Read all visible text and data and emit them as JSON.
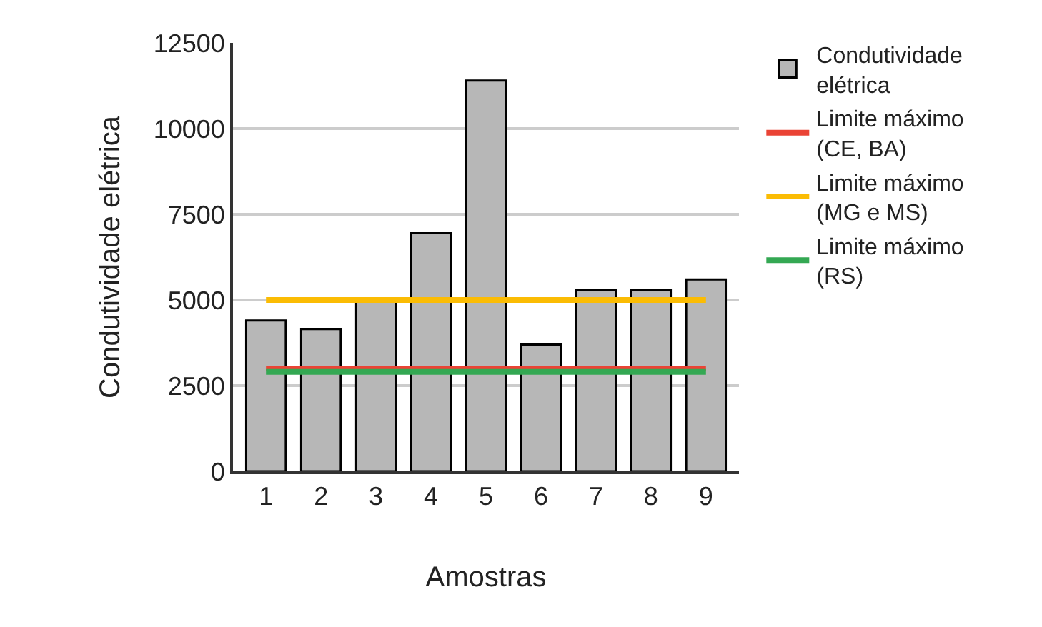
{
  "chart_data": {
    "type": "bar",
    "xlabel": "Amostras",
    "ylabel": "Condutividade elétrica",
    "categories": [
      "1",
      "2",
      "3",
      "4",
      "5",
      "6",
      "7",
      "8",
      "9"
    ],
    "series": [
      {
        "name": "Condutividade elétrica",
        "color": "#b7b7b7",
        "values": [
          4400,
          4150,
          5050,
          6950,
          11400,
          3700,
          5300,
          5300,
          5600
        ]
      },
      {
        "name": "Limite máximo (CE, BA)",
        "type": "line",
        "color": "#ea4335",
        "values": [
          3000,
          3000,
          3000,
          3000,
          3000,
          3000,
          3000,
          3000,
          3000
        ]
      },
      {
        "name": "Limite máximo (MG e MS)",
        "type": "line",
        "color": "#fbbc04",
        "values": [
          5000,
          5000,
          5000,
          5000,
          5000,
          5000,
          5000,
          5000,
          5000
        ]
      },
      {
        "name": "Limite máximo (RS)",
        "type": "line",
        "color": "#34a853",
        "values": [
          2900,
          2900,
          2900,
          2900,
          2900,
          2900,
          2900,
          2900,
          2900
        ]
      }
    ],
    "ylim": [
      0,
      12500
    ],
    "yticks": [
      0,
      2500,
      5000,
      7500,
      10000,
      12500
    ],
    "grid": "y",
    "legend": "right",
    "marker": "none",
    "line_style": "solid"
  }
}
